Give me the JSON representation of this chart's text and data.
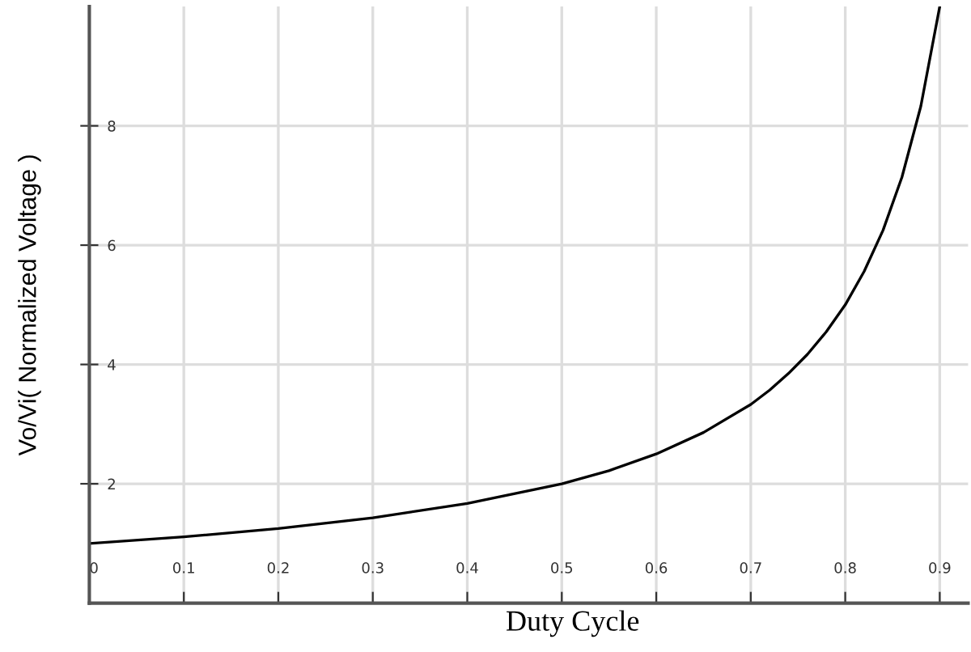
{
  "chart_data": {
    "type": "line",
    "xlabel": "Duty Cycle",
    "ylabel": "Vo/Vi( Normalized Voltage )",
    "x": [
      0,
      0.1,
      0.2,
      0.3,
      0.4,
      0.5,
      0.55,
      0.6,
      0.65,
      0.7,
      0.72,
      0.74,
      0.76,
      0.78,
      0.8,
      0.82,
      0.84,
      0.86,
      0.88,
      0.9
    ],
    "series": [
      {
        "color": "#000000",
        "values": [
          1.0,
          1.11,
          1.25,
          1.43,
          1.67,
          2.0,
          2.22,
          2.5,
          2.86,
          3.33,
          3.57,
          3.85,
          4.17,
          4.55,
          5.0,
          5.56,
          6.25,
          7.14,
          8.33,
          10.0
        ]
      }
    ],
    "xlim": [
      0,
      0.93
    ],
    "ylim": [
      0,
      10
    ],
    "xticks": [
      0,
      0.1,
      0.2,
      0.3,
      0.4,
      0.5,
      0.6,
      0.7,
      0.8,
      0.9
    ],
    "yticks": [
      2,
      4,
      6,
      8
    ],
    "grid": true,
    "marker": "none",
    "line_style": "solid"
  }
}
